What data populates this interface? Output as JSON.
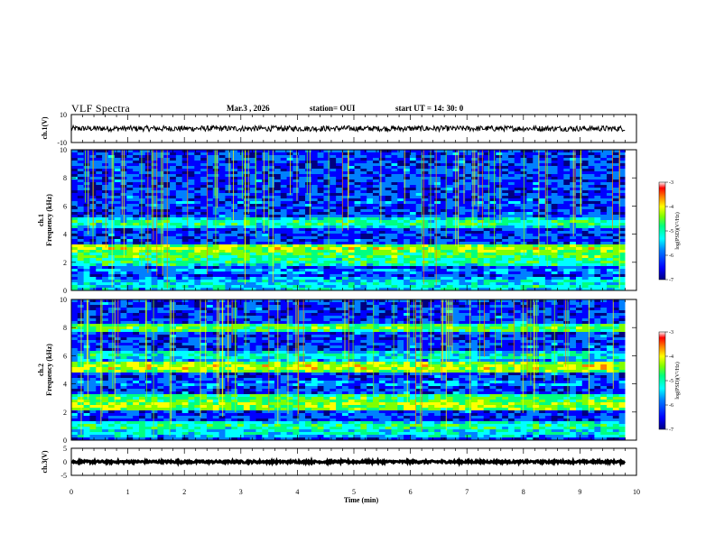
{
  "header": {
    "title": "VLF Spectra",
    "date": "Mar.3  , 2026",
    "station": "station= OUI",
    "start": "start  UT  =    14: 30: 0"
  },
  "chart_data": [
    {
      "type": "line",
      "name": "ch1-waveform",
      "ylabel": "ch.1(V)",
      "ylim": [
        -10,
        10
      ],
      "yticks": [
        "10",
        "-10"
      ],
      "level": 0,
      "noise_amplitude": 2
    },
    {
      "type": "heatmap",
      "name": "ch1-spectrogram",
      "ylabel_line1": "ch.1",
      "ylabel_line2": "Frequency  (kHz)",
      "ylim": [
        0,
        10
      ],
      "yticks": [
        "0",
        "2",
        "4",
        "6",
        "8",
        "10"
      ],
      "colorbar": {
        "label": "log(PSD)(V²/Hz)",
        "ticks": [
          "-3",
          "-4",
          "-5",
          "-6",
          "-7"
        ],
        "range": [
          -7,
          -3
        ]
      },
      "bands_khz": [
        {
          "f": 0.3,
          "level": -5.3
        },
        {
          "f": 0.7,
          "level": -5.5
        },
        {
          "f": 1.4,
          "level": -5.8
        },
        {
          "f": 2.0,
          "level": -5.0
        },
        {
          "f": 2.5,
          "level": -4.7
        },
        {
          "f": 3.0,
          "level": -4.3
        },
        {
          "f": 4.1,
          "level": -6.6
        },
        {
          "f": 4.8,
          "level": -5.0
        },
        {
          "f": 5.8,
          "level": -6.3
        },
        {
          "f": 6.2,
          "level": -6.0
        },
        {
          "f": 7.2,
          "level": -6.2
        }
      ]
    },
    {
      "type": "heatmap",
      "name": "ch2-spectrogram",
      "ylabel_line1": "ch.2",
      "ylabel_line2": "Frequency  (kHz)",
      "ylim": [
        0,
        10
      ],
      "yticks": [
        "0",
        "2",
        "4",
        "6",
        "8",
        "10"
      ],
      "colorbar": {
        "label": "log(PSD)(V²/Hz)",
        "ticks": [
          "-3",
          "-4",
          "-5",
          "-6",
          "-7"
        ],
        "range": [
          -7,
          -3
        ]
      },
      "bands_khz": [
        {
          "f": 0.5,
          "level": -5.3
        },
        {
          "f": 1.0,
          "level": -5.0
        },
        {
          "f": 1.8,
          "level": -6.3
        },
        {
          "f": 2.5,
          "level": -4.3
        },
        {
          "f": 3.0,
          "level": -4.8
        },
        {
          "f": 4.0,
          "level": -5.8
        },
        {
          "f": 5.2,
          "level": -4.2
        },
        {
          "f": 6.0,
          "level": -5.2
        },
        {
          "f": 8.0,
          "level": -4.7
        }
      ]
    },
    {
      "type": "line",
      "name": "ch3-waveform",
      "ylabel": "ch.3(V)",
      "ylim": [
        -5,
        5
      ],
      "yticks": [
        "5",
        "0",
        "-5"
      ],
      "level": 0,
      "noise_amplitude": 0.4
    }
  ],
  "xaxis": {
    "label": "Time  (min)",
    "xlim": [
      0,
      10
    ],
    "ticks": [
      "0",
      "1",
      "2",
      "3",
      "4",
      "5",
      "6",
      "7",
      "8",
      "9",
      "10"
    ],
    "data_end_min": 9.8
  },
  "colors": {
    "background": "#ffffff",
    "axis": "#000000",
    "colormap": [
      "#000080",
      "#0000ff",
      "#0080ff",
      "#00ffff",
      "#00ff80",
      "#80ff00",
      "#ffff00",
      "#ff8000",
      "#ff0000",
      "#ffffff"
    ]
  }
}
